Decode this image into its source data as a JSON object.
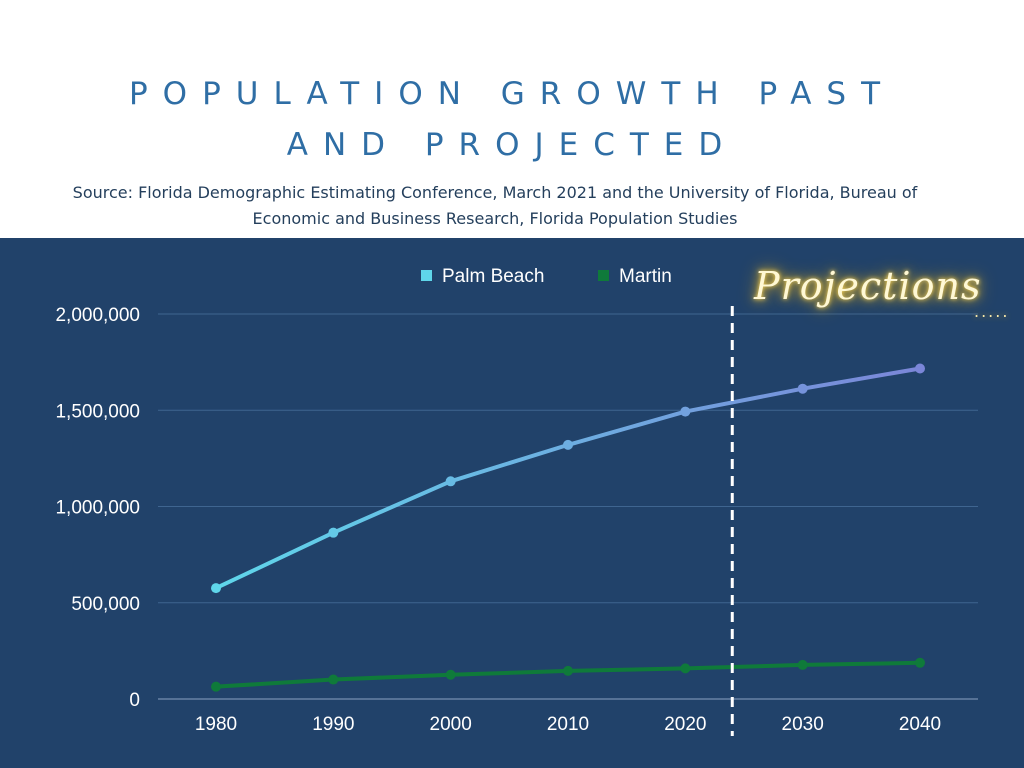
{
  "title": {
    "line1": "POPULATION GROWTH PAST",
    "line2": "AND PROJECTED"
  },
  "source": {
    "line1": "Source: Florida Demographic Estimating Conference, March 2021 and the University of Florida, Bureau of",
    "line2": "Economic and Business Research, Florida Population Studies"
  },
  "annotation": {
    "projections_label": "Projections",
    "projections_dots": ".....",
    "divider_year": 2024
  },
  "colors": {
    "header_background": "#ffffff",
    "title": "#2f6ea5",
    "panel_background": "#21426a",
    "gridline": "#3f6590",
    "axis_text": "#ffffff",
    "palm_beach_start": "#5fd6ea",
    "palm_beach_end": "#7b86d8",
    "martin": "#0f7a3a",
    "divider": "#ffffff",
    "glow": "#ffd95e"
  },
  "chart_data": {
    "type": "line",
    "title": "POPULATION GROWTH PAST AND PROJECTED",
    "xlabel": "",
    "ylabel": "",
    "x": [
      1980,
      1990,
      2000,
      2010,
      2020,
      2030,
      2040
    ],
    "x_tick_labels": [
      "1980",
      "1990",
      "2000",
      "2010",
      "2020",
      "2030",
      "2040"
    ],
    "ylim": [
      0,
      2000000
    ],
    "y_ticks": [
      0,
      500000,
      1000000,
      1500000,
      2000000
    ],
    "y_tick_labels": [
      "0",
      "500,000",
      "1,000,000",
      "1,500,000",
      "2,000,000"
    ],
    "grid": true,
    "legend_position": "top-center",
    "series": [
      {
        "name": "Palm Beach",
        "values": [
          576000,
          864000,
          1131000,
          1320000,
          1493000,
          1612000,
          1717000
        ]
      },
      {
        "name": "Martin",
        "values": [
          64000,
          101000,
          126000,
          146000,
          159000,
          177000,
          188000
        ]
      }
    ]
  }
}
